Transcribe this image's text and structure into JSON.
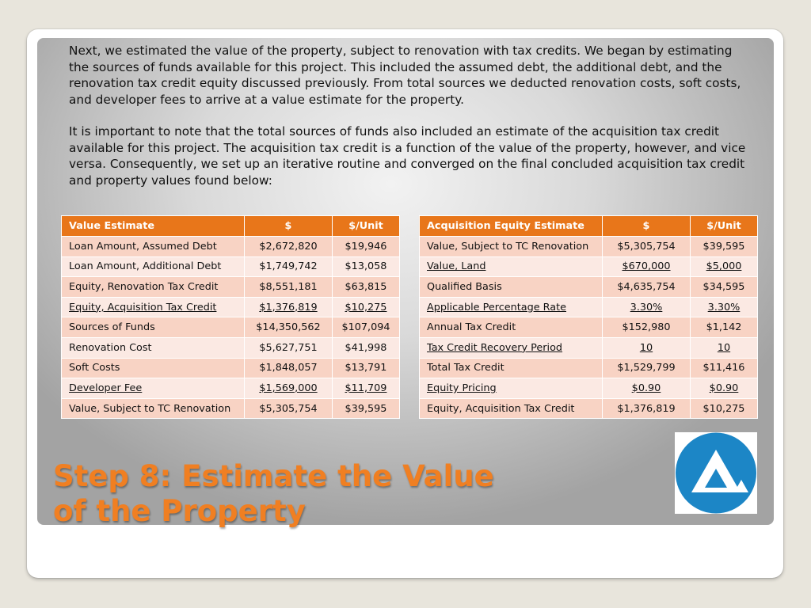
{
  "intro": {
    "paragraph1": "Next, we estimated the value of the property, subject to renovation with tax credits. We began by estimating the sources of funds available for this project. This included the assumed debt, the additional debt, and the renovation tax credit equity discussed previously. From total sources we deducted renovation costs, soft costs, and developer fees to arrive at a value estimate for the property.",
    "paragraph2": "It is important to note that the total sources of funds also included an estimate of the acquisition tax credit available for this project. The acquisition tax credit is a function of the value of the property, however, and vice versa. Consequently, we set up an iterative routine and converged on the final concluded acquisition tax credit and property values found below:"
  },
  "value_table": {
    "headers": [
      "Value Estimate",
      "$",
      "$/Unit"
    ],
    "rows": [
      {
        "label": "Loan Amount, Assumed Debt",
        "amount": "$2,672,820",
        "per_unit": "$19,946",
        "underlined": false
      },
      {
        "label": "Loan Amount, Additional Debt",
        "amount": "$1,749,742",
        "per_unit": "$13,058",
        "underlined": false
      },
      {
        "label": "Equity, Renovation Tax Credit",
        "amount": "$8,551,181",
        "per_unit": "$63,815",
        "underlined": false
      },
      {
        "label": "Equity, Acquisition Tax Credit",
        "amount": "$1,376,819",
        "per_unit": "$10,275",
        "underlined": true
      },
      {
        "label": "Sources of Funds",
        "amount": "$14,350,562",
        "per_unit": "$107,094",
        "underlined": false
      },
      {
        "label": "Renovation Cost",
        "amount": "$5,627,751",
        "per_unit": "$41,998",
        "underlined": false
      },
      {
        "label": "Soft Costs",
        "amount": "$1,848,057",
        "per_unit": "$13,791",
        "underlined": false
      },
      {
        "label": "Developer Fee",
        "amount": "$1,569,000",
        "per_unit": "$11,709",
        "underlined": true
      },
      {
        "label": "Value, Subject to TC Renovation",
        "amount": "$5,305,754",
        "per_unit": "$39,595",
        "underlined": false
      }
    ]
  },
  "equity_table": {
    "headers": [
      "Acquisition Equity Estimate",
      "$",
      "$/Unit"
    ],
    "rows": [
      {
        "label": "Value, Subject to TC Renovation",
        "amount": "$5,305,754",
        "per_unit": "$39,595",
        "underlined": false
      },
      {
        "label": "Value, Land",
        "amount": "$670,000",
        "per_unit": "$5,000",
        "underlined": true
      },
      {
        "label": "Qualified Basis",
        "amount": "$4,635,754",
        "per_unit": "$34,595",
        "underlined": false
      },
      {
        "label": "Applicable Percentage Rate",
        "amount": "3.30%",
        "per_unit": "3.30%",
        "underlined": true
      },
      {
        "label": "Annual Tax Credit",
        "amount": "$152,980",
        "per_unit": "$1,142",
        "underlined": false
      },
      {
        "label": "Tax Credit Recovery Period",
        "amount": "10",
        "per_unit": "10",
        "underlined": true
      },
      {
        "label": "Total Tax Credit",
        "amount": "$1,529,799",
        "per_unit": "$11,416",
        "underlined": false
      },
      {
        "label": "Equity Pricing",
        "amount": "$0.90",
        "per_unit": "$0.90",
        "underlined": true
      },
      {
        "label": "Equity, Acquisition Tax Credit",
        "amount": "$1,376,819",
        "per_unit": "$10,275",
        "underlined": false
      }
    ]
  },
  "title": {
    "line1": "Step 8: Estimate the Value",
    "line2": "of the Property"
  },
  "colors": {
    "accent": "#f07f22",
    "table_header": "#e8761a",
    "row_odd": "#f8d3c4",
    "row_even": "#fbe9e3",
    "logo_blue": "#1c86c6"
  },
  "logo": {
    "icon": "triangle-logo-icon"
  }
}
